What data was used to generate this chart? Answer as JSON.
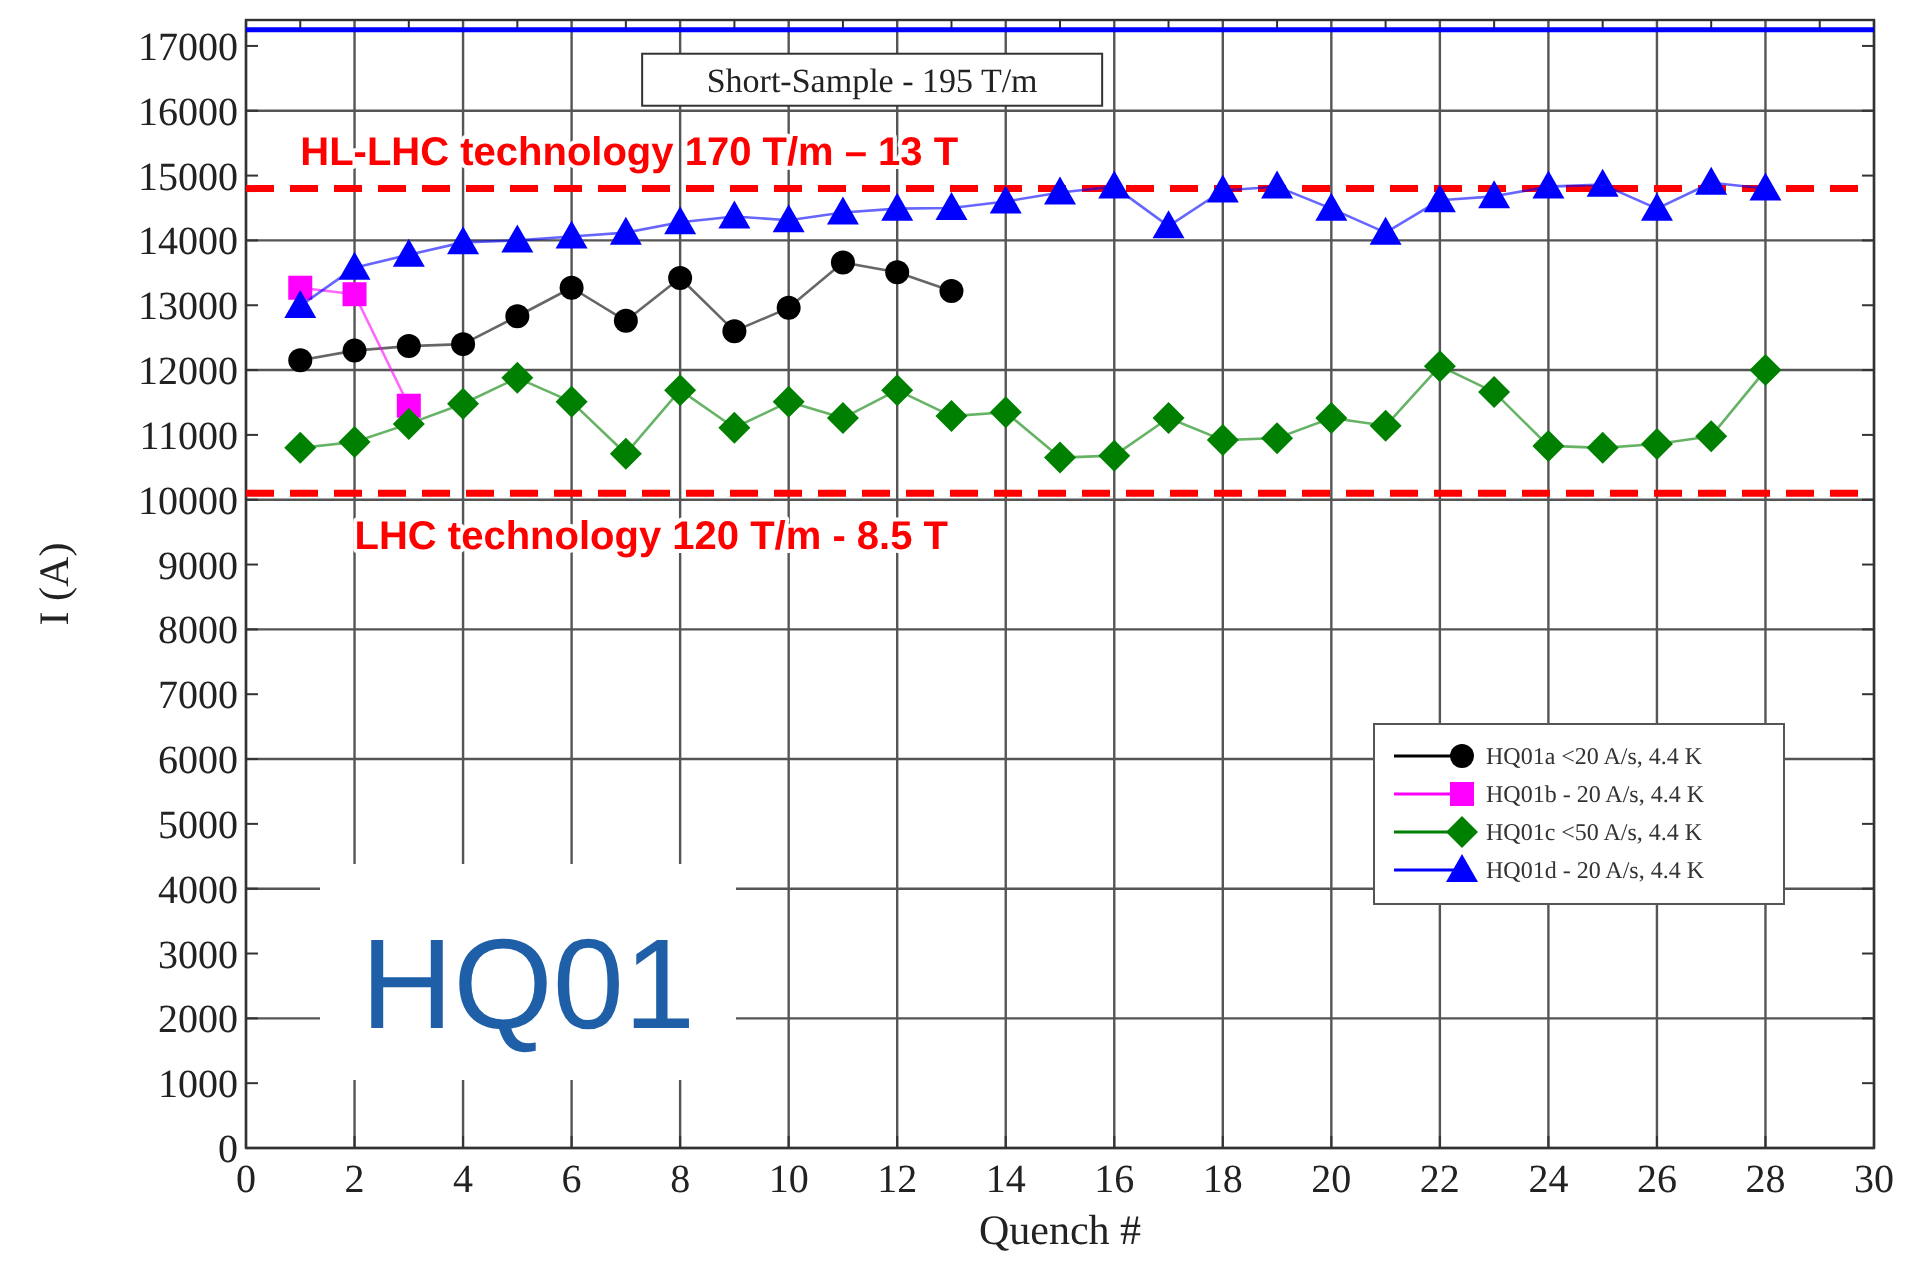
{
  "chart_data": {
    "type": "line",
    "xlabel": "Quench #",
    "ylabel": "I (A)",
    "xlim": [
      0,
      30
    ],
    "xticks": [
      0,
      2,
      4,
      6,
      8,
      10,
      12,
      14,
      16,
      18,
      20,
      22,
      24,
      26,
      28,
      30
    ],
    "ylim": [
      0,
      17400
    ],
    "yticks": [
      0,
      1000,
      2000,
      3000,
      4000,
      5000,
      6000,
      7000,
      8000,
      9000,
      10000,
      11000,
      12000,
      13000,
      14000,
      15000,
      16000,
      17000
    ],
    "grid": true,
    "legend": "bottom right",
    "series": [
      {
        "name": "HQ01a <20 A/s, 4.4 K",
        "color": "#000000",
        "marker": "circle",
        "x": [
          1,
          2,
          3,
          4,
          5,
          6,
          7,
          8,
          9,
          10,
          11,
          12,
          13
        ],
        "values": [
          12150,
          12300,
          12370,
          12400,
          12830,
          13270,
          12760,
          13420,
          12600,
          12960,
          13660,
          13510,
          13220
        ]
      },
      {
        "name": "HQ01b - 20 A/s, 4.4 K",
        "color": "#ff00ff",
        "marker": "square",
        "x": [
          1,
          2,
          3
        ],
        "values": [
          13270,
          13170,
          11450
        ]
      },
      {
        "name": "HQ01c <50 A/s, 4.4 K",
        "color": "#008000",
        "marker": "diamond",
        "x": [
          1,
          2,
          3,
          4,
          5,
          6,
          7,
          8,
          9,
          10,
          11,
          12,
          13,
          14,
          15,
          16,
          17,
          18,
          19,
          20,
          21,
          22,
          23,
          24,
          25,
          26,
          27,
          28
        ],
        "values": [
          10800,
          10890,
          11170,
          11480,
          11880,
          11510,
          10710,
          11690,
          11110,
          11510,
          11260,
          11690,
          11290,
          11350,
          10650,
          10680,
          11260,
          10920,
          10950,
          11260,
          11140,
          12060,
          11660,
          10830,
          10800,
          10860,
          10980,
          12000
        ]
      },
      {
        "name": "HQ01d - 20 A/s, 4.4 K",
        "color": "#0000ff",
        "marker": "triangle",
        "x": [
          1,
          2,
          3,
          4,
          5,
          6,
          7,
          8,
          9,
          10,
          11,
          12,
          13,
          14,
          15,
          16,
          17,
          18,
          19,
          20,
          21,
          22,
          23,
          24,
          25,
          26,
          27,
          28
        ],
        "values": [
          12990,
          13580,
          13780,
          13970,
          14000,
          14060,
          14120,
          14280,
          14370,
          14310,
          14430,
          14490,
          14500,
          14600,
          14740,
          14830,
          14220,
          14770,
          14830,
          14490,
          14120,
          14620,
          14680,
          14830,
          14860,
          14490,
          14890,
          14800
        ]
      }
    ],
    "ref_lines": [
      {
        "axis": "y",
        "value": 17250,
        "label": "Short-Sample - 195 T/m",
        "color": "#0000ff",
        "line_style": "solid"
      },
      {
        "axis": "y",
        "value": 14800,
        "label": "HL-LHC technology 170 T/m – 13 T",
        "color": "#ff0000",
        "line_style": "dashed"
      },
      {
        "axis": "y",
        "value": 10100,
        "label": "LHC technology 120 T/m - 8.5 T",
        "color": "#ff0000",
        "line_style": "dashed"
      }
    ],
    "annotations": [
      "HQ01"
    ]
  }
}
